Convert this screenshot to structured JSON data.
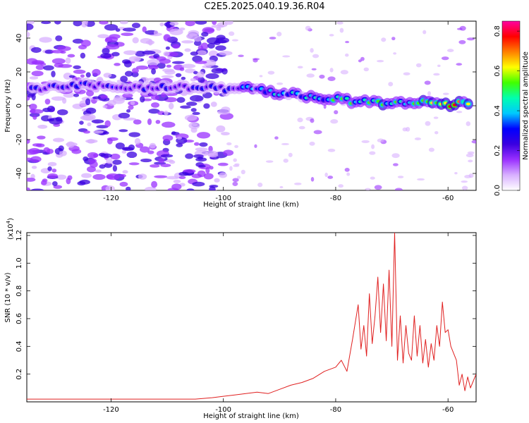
{
  "figure_title": "C2E5.2025.040.19.36.R04",
  "colors": {
    "snr_line": "#e02020",
    "ridge": "#3a00e0"
  },
  "chart_data": [
    {
      "type": "heatmap",
      "xlabel": "Height of straight line (km)",
      "ylabel": "Frequency (Hz)",
      "xlim": [
        -135,
        -55
      ],
      "ylim": [
        -50,
        50
      ],
      "x_ticks": [
        -120,
        -100,
        -80,
        -60
      ],
      "y_ticks": [
        -40,
        -20,
        0,
        20,
        40
      ],
      "colorbar": {
        "label": "Normalized spectral amplitude",
        "range": [
          0,
          0.85
        ],
        "ticks": [
          "0.0",
          "0.2",
          "0.4",
          "0.6",
          "0.8"
        ],
        "colormap": [
          "#ffffff",
          "#d8b0ff",
          "#9a30ff",
          "#3a00e0",
          "#0000ff",
          "#00c8ff",
          "#00ffb0",
          "#40ff00",
          "#ffff00",
          "#ff8000",
          "#ff0000",
          "#ff00a0"
        ]
      },
      "ridge": {
        "x": [
          -134,
          -126,
          -118,
          -112,
          -106,
          -100,
          -96,
          -92,
          -88,
          -84,
          -80,
          -76,
          -72,
          -68,
          -64,
          -60,
          -56
        ],
        "frequency": [
          10,
          12,
          11,
          11,
          11,
          10,
          11,
          8,
          7,
          5,
          4,
          2,
          2,
          1,
          2,
          1,
          1
        ],
        "peak_amplitude": [
          0.3,
          0.32,
          0.3,
          0.3,
          0.3,
          0.32,
          0.4,
          0.42,
          0.45,
          0.5,
          0.52,
          0.55,
          0.55,
          0.55,
          0.6,
          0.85,
          0.55
        ]
      }
    },
    {
      "type": "line",
      "xlabel": "Height of straight line (km)",
      "ylabel": "SNR (10 * v/v)",
      "y_multiplier": "(x10",
      "y_multiplier_exp": "4",
      "xlim": [
        -135,
        -55
      ],
      "ylim": [
        0,
        1.22
      ],
      "x_ticks": [
        -120,
        -100,
        -80,
        -60
      ],
      "y_ticks": [
        "0.2",
        "0.4",
        "0.6",
        "0.8",
        "1.0",
        "1.2"
      ],
      "series": [
        {
          "x": [
            -135,
            -130,
            -125,
            -120,
            -115,
            -110,
            -105,
            -102,
            -100,
            -98,
            -96,
            -94,
            -92,
            -90,
            -88,
            -86,
            -84,
            -82,
            -80,
            -79,
            -78,
            -77,
            -76,
            -75.5,
            -75,
            -74.5,
            -74,
            -73.5,
            -73,
            -72.5,
            -72,
            -71.5,
            -71,
            -70.5,
            -70,
            -69.5,
            -69,
            -68.5,
            -68,
            -67.5,
            -67,
            -66.5,
            -66,
            -65.5,
            -65,
            -64.5,
            -64,
            -63.5,
            -63,
            -62.5,
            -62,
            -61.5,
            -61,
            -60.5,
            -60,
            -59.5,
            -59,
            -58.5,
            -58,
            -57.5,
            -57,
            -56.5,
            -56,
            -55.5,
            -55
          ],
          "y": [
            0.02,
            0.02,
            0.02,
            0.02,
            0.02,
            0.02,
            0.02,
            0.03,
            0.04,
            0.05,
            0.06,
            0.07,
            0.06,
            0.09,
            0.12,
            0.14,
            0.17,
            0.22,
            0.25,
            0.3,
            0.22,
            0.45,
            0.7,
            0.38,
            0.55,
            0.33,
            0.78,
            0.42,
            0.62,
            0.9,
            0.5,
            0.85,
            0.44,
            0.95,
            0.4,
            1.22,
            0.3,
            0.62,
            0.28,
            0.55,
            0.35,
            0.3,
            0.62,
            0.33,
            0.55,
            0.28,
            0.45,
            0.25,
            0.42,
            0.3,
            0.55,
            0.4,
            0.72,
            0.5,
            0.52,
            0.4,
            0.35,
            0.3,
            0.12,
            0.2,
            0.08,
            0.18,
            0.1,
            0.15,
            0.2
          ]
        }
      ]
    }
  ]
}
